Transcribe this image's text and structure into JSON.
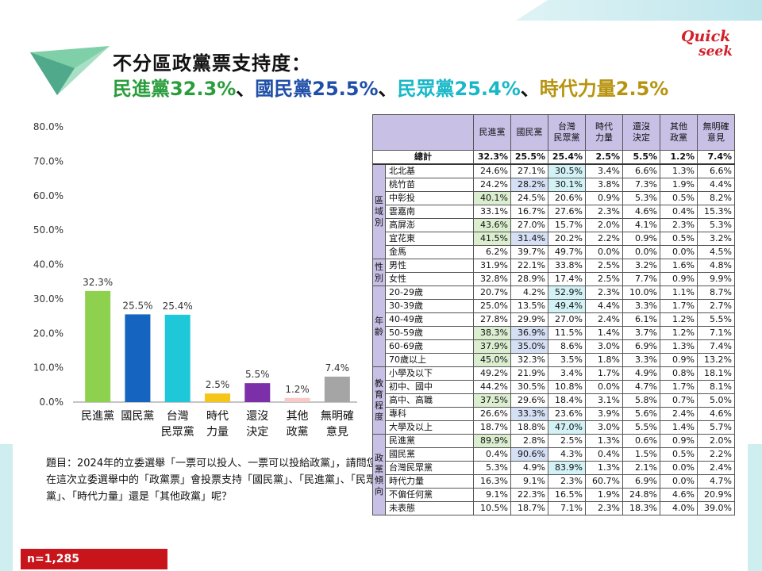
{
  "header": {
    "title": "不分區政黨票支持度：",
    "subtitle_parts": [
      {
        "text": "民進黨32.3%",
        "cls": "c-dpp"
      },
      {
        "text": "、",
        "cls": "c-sep"
      },
      {
        "text": "國民黨25.5%",
        "cls": "c-kmt"
      },
      {
        "text": "、",
        "cls": "c-sep"
      },
      {
        "text": "民眾黨25.4%",
        "cls": "c-tpp"
      },
      {
        "text": "、",
        "cls": "c-sep"
      },
      {
        "text": "時代力量2.5%",
        "cls": "c-npp"
      }
    ],
    "logo_line1": "Quick",
    "logo_line2": "seek"
  },
  "chart_data": {
    "type": "bar",
    "categories": [
      [
        "民進黨"
      ],
      [
        "國民黨"
      ],
      [
        "台灣",
        "民眾黨"
      ],
      [
        "時代",
        "力量"
      ],
      [
        "還沒",
        "決定"
      ],
      [
        "其他",
        "政黨"
      ],
      [
        "無明確",
        "意見"
      ]
    ],
    "values": [
      32.3,
      25.5,
      25.4,
      2.5,
      5.5,
      1.2,
      7.4
    ],
    "value_labels": [
      "32.3%",
      "25.5%",
      "25.4%",
      "2.5%",
      "5.5%",
      "1.2%",
      "7.4%"
    ],
    "colors": [
      "#8ed14e",
      "#1565c0",
      "#1fc8d8",
      "#f5c518",
      "#7b2fa8",
      "#f7c9c9",
      "#a5a5a5"
    ],
    "ylim": [
      0,
      80
    ],
    "yticks": [
      0,
      10,
      20,
      30,
      40,
      50,
      60,
      70,
      80
    ],
    "ytick_labels": [
      "0.0%",
      "10.0%",
      "20.0%",
      "30.0%",
      "40.0%",
      "50.0%",
      "60.0%",
      "70.0%",
      "80.0%"
    ],
    "grid": false
  },
  "question": "題目：2024年的立委選舉「一票可以投人、一票可以投給政黨」，請問您在這次立委選舉中的「政黨票」會投票支持「國民黨」、「民進黨」、「民眾黨」、「時代力量」還是「其他政黨」呢？",
  "sample": "n=1,285",
  "table": {
    "headers": [
      [
        "民進黨"
      ],
      [
        "國民黨"
      ],
      [
        "台灣",
        "民眾黨"
      ],
      [
        "時代",
        "力量"
      ],
      [
        "還沒",
        "決定"
      ],
      [
        "其他",
        "政黨"
      ],
      [
        "無明確",
        "意見"
      ]
    ],
    "total": {
      "label": "總計",
      "values": [
        "32.3%",
        "25.5%",
        "25.4%",
        "2.5%",
        "5.5%",
        "1.2%",
        "7.4%"
      ]
    },
    "groups": [
      {
        "label": [
          "區",
          "域",
          "別"
        ],
        "rows": [
          {
            "label": "北北基",
            "values": [
              "24.6%",
              "27.1%",
              "30.5%",
              "3.4%",
              "6.6%",
              "1.3%",
              "6.6%"
            ],
            "hl": {
              "2": "c"
            }
          },
          {
            "label": "桃竹苗",
            "values": [
              "24.2%",
              "28.2%",
              "30.1%",
              "3.8%",
              "7.3%",
              "1.9%",
              "4.4%"
            ],
            "hl": {
              "1": "b",
              "2": "c"
            }
          },
          {
            "label": "中彰投",
            "values": [
              "40.1%",
              "24.5%",
              "20.6%",
              "0.9%",
              "5.3%",
              "0.5%",
              "8.2%"
            ],
            "hl": {
              "0": "g"
            }
          },
          {
            "label": "雲嘉南",
            "values": [
              "33.1%",
              "16.7%",
              "27.6%",
              "2.3%",
              "4.6%",
              "0.4%",
              "15.3%"
            ],
            "hl": {}
          },
          {
            "label": "高屏澎",
            "values": [
              "43.6%",
              "27.0%",
              "15.7%",
              "2.0%",
              "4.1%",
              "2.3%",
              "5.3%"
            ],
            "hl": {
              "0": "g"
            }
          },
          {
            "label": "宜花東",
            "values": [
              "41.5%",
              "31.4%",
              "20.2%",
              "2.2%",
              "0.9%",
              "0.5%",
              "3.2%"
            ],
            "hl": {
              "0": "g",
              "1": "b"
            }
          },
          {
            "label": "金馬",
            "values": [
              "6.2%",
              "39.7%",
              "49.7%",
              "0.0%",
              "0.0%",
              "0.0%",
              "4.5%"
            ],
            "hl": {}
          }
        ]
      },
      {
        "label": [
          "性",
          "別"
        ],
        "rows": [
          {
            "label": "男性",
            "values": [
              "31.9%",
              "22.1%",
              "33.8%",
              "2.5%",
              "3.2%",
              "1.6%",
              "4.8%"
            ],
            "hl": {}
          },
          {
            "label": "女性",
            "values": [
              "32.8%",
              "28.9%",
              "17.4%",
              "2.5%",
              "7.7%",
              "0.9%",
              "9.9%"
            ],
            "hl": {}
          }
        ]
      },
      {
        "label": [
          "年",
          "齡"
        ],
        "rows": [
          {
            "label": "20-29歲",
            "values": [
              "20.7%",
              "4.2%",
              "52.9%",
              "2.3%",
              "10.0%",
              "1.1%",
              "8.7%"
            ],
            "hl": {
              "2": "c"
            }
          },
          {
            "label": "30-39歲",
            "values": [
              "25.0%",
              "13.5%",
              "49.4%",
              "4.4%",
              "3.3%",
              "1.7%",
              "2.7%"
            ],
            "hl": {
              "2": "c"
            }
          },
          {
            "label": "40-49歲",
            "values": [
              "27.8%",
              "29.9%",
              "27.0%",
              "2.4%",
              "6.1%",
              "1.2%",
              "5.5%"
            ],
            "hl": {}
          },
          {
            "label": "50-59歲",
            "values": [
              "38.3%",
              "36.9%",
              "11.5%",
              "1.4%",
              "3.7%",
              "1.2%",
              "7.1%"
            ],
            "hl": {
              "0": "g",
              "1": "b"
            }
          },
          {
            "label": "60-69歲",
            "values": [
              "37.9%",
              "35.0%",
              "8.6%",
              "3.0%",
              "6.9%",
              "1.3%",
              "7.4%"
            ],
            "hl": {
              "0": "g",
              "1": "b"
            }
          },
          {
            "label": "70歲以上",
            "values": [
              "45.0%",
              "32.3%",
              "3.5%",
              "1.8%",
              "3.3%",
              "0.9%",
              "13.2%"
            ],
            "hl": {
              "0": "g"
            }
          }
        ]
      },
      {
        "label": [
          "教",
          "育",
          "程",
          "度"
        ],
        "rows": [
          {
            "label": "小學及以下",
            "values": [
              "49.2%",
              "21.9%",
              "3.4%",
              "1.7%",
              "4.9%",
              "0.8%",
              "18.1%"
            ],
            "hl": {}
          },
          {
            "label": "初中、國中",
            "values": [
              "44.2%",
              "30.5%",
              "10.8%",
              "0.0%",
              "4.7%",
              "1.7%",
              "8.1%"
            ],
            "hl": {}
          },
          {
            "label": "高中、高職",
            "values": [
              "37.5%",
              "29.6%",
              "18.4%",
              "3.1%",
              "5.8%",
              "0.7%",
              "5.0%"
            ],
            "hl": {
              "0": "g"
            }
          },
          {
            "label": "專科",
            "values": [
              "26.6%",
              "33.3%",
              "23.6%",
              "3.9%",
              "5.6%",
              "2.4%",
              "4.6%"
            ],
            "hl": {
              "1": "b"
            }
          },
          {
            "label": "大學及以上",
            "values": [
              "18.7%",
              "18.8%",
              "47.0%",
              "3.0%",
              "5.5%",
              "1.4%",
              "5.7%"
            ],
            "hl": {
              "2": "c"
            }
          }
        ]
      },
      {
        "label": [
          "政",
          "黨",
          "傾",
          "向"
        ],
        "rows": [
          {
            "label": "民進黨",
            "values": [
              "89.9%",
              "2.8%",
              "2.5%",
              "1.3%",
              "0.6%",
              "0.9%",
              "2.0%"
            ],
            "hl": {
              "0": "g"
            }
          },
          {
            "label": "國民黨",
            "values": [
              "0.4%",
              "90.6%",
              "4.3%",
              "0.4%",
              "1.5%",
              "0.5%",
              "2.2%"
            ],
            "hl": {
              "1": "b"
            }
          },
          {
            "label": "台灣民眾黨",
            "values": [
              "5.3%",
              "4.9%",
              "83.9%",
              "1.3%",
              "2.1%",
              "0.0%",
              "2.4%"
            ],
            "hl": {
              "2": "c"
            }
          },
          {
            "label": "時代力量",
            "values": [
              "16.3%",
              "9.1%",
              "2.3%",
              "60.7%",
              "6.9%",
              "0.0%",
              "4.7%"
            ],
            "hl": {}
          },
          {
            "label": "不偏任何黨",
            "values": [
              "9.1%",
              "22.3%",
              "16.5%",
              "1.9%",
              "24.8%",
              "4.6%",
              "20.9%"
            ],
            "hl": {}
          },
          {
            "label": "未表態",
            "values": [
              "10.5%",
              "18.7%",
              "7.1%",
              "2.3%",
              "18.3%",
              "4.0%",
              "39.0%"
            ],
            "hl": {}
          }
        ]
      }
    ]
  }
}
